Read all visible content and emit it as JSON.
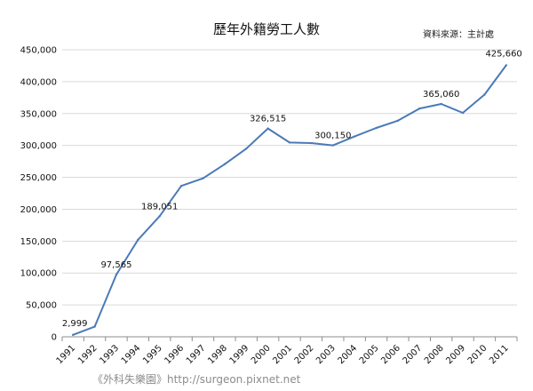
{
  "chart_data": {
    "type": "line",
    "title": "歷年外籍勞工人數",
    "source_note": "資料來源：主計處",
    "footer_credit": "《外科失樂園》http://surgeon.pixnet.net",
    "xlabel": "",
    "ylabel": "",
    "ylim": [
      0,
      450000
    ],
    "y_ticks": [
      "0",
      "50,000",
      "100,000",
      "150,000",
      "200,000",
      "250,000",
      "300,000",
      "350,000",
      "400,000",
      "450,000"
    ],
    "grid": "horizontal",
    "legend": "none",
    "line_color": "#4a7ab7",
    "categories": [
      "1991",
      "1992",
      "1993",
      "1994",
      "1995",
      "1996",
      "1997",
      "1998",
      "1999",
      "2000",
      "2001",
      "2002",
      "2003",
      "2004",
      "2005",
      "2006",
      "2007",
      "2008",
      "2009",
      "2010",
      "2011"
    ],
    "series": [
      {
        "name": "",
        "values": [
          2999,
          15924,
          97565,
          151989,
          189051,
          236555,
          248396,
          270620,
          294967,
          326515,
          304605,
          303684,
          300150,
          314034,
          327396,
          338755,
          357937,
          365060,
          351016,
          379653,
          425660
        ]
      }
    ],
    "data_labels": [
      {
        "index": 0,
        "text": "2,999"
      },
      {
        "index": 2,
        "text": "97,565"
      },
      {
        "index": 4,
        "text": "189,051"
      },
      {
        "index": 9,
        "text": "326,515"
      },
      {
        "index": 12,
        "text": "300,150"
      },
      {
        "index": 17,
        "text": "365,060"
      },
      {
        "index": 20,
        "text": "425,660"
      }
    ]
  }
}
